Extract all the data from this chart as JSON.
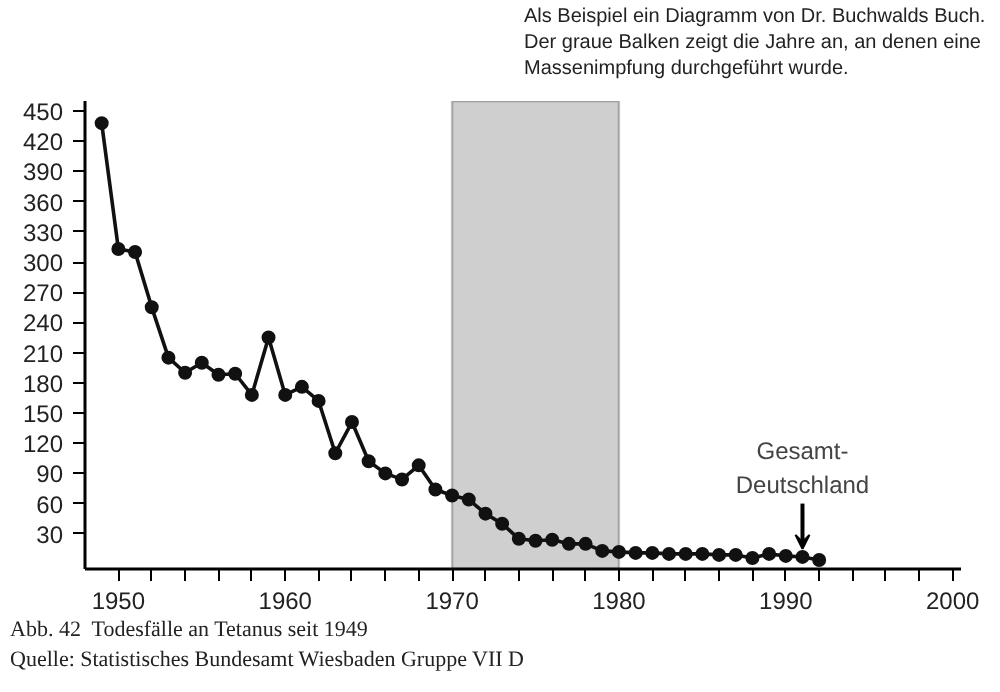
{
  "chart_data": {
    "type": "line",
    "x": [
      1949,
      1950,
      1951,
      1952,
      1953,
      1954,
      1955,
      1956,
      1957,
      1958,
      1959,
      1960,
      1961,
      1962,
      1963,
      1964,
      1965,
      1966,
      1967,
      1968,
      1969,
      1970,
      1971,
      1972,
      1973,
      1974,
      1975,
      1976,
      1977,
      1978,
      1979,
      1980,
      1981,
      1982,
      1983,
      1984,
      1985,
      1986,
      1987,
      1988,
      1989,
      1990,
      1991,
      1992
    ],
    "series": [
      {
        "color": "#111111",
        "values": [
          438,
          313,
          310,
          255,
          205,
          190,
          200,
          188,
          189,
          168,
          225,
          168,
          176,
          162,
          110,
          141,
          102,
          90,
          84,
          98,
          74,
          68,
          64,
          50,
          40,
          25,
          23,
          24,
          20,
          20,
          13,
          12,
          11,
          11,
          10,
          10,
          10,
          9,
          9,
          6,
          10,
          8,
          7,
          4
        ]
      }
    ],
    "xlim": [
      1948,
      2000.5
    ],
    "ylim": [
      -5,
      460
    ],
    "xticks": [
      1950,
      {
        "value": 1952,
        "label": null
      },
      {
        "value": 1954,
        "label": null
      },
      {
        "value": 1956,
        "label": null
      },
      {
        "value": 1958,
        "label": null
      },
      1960,
      {
        "value": 1962,
        "label": null
      },
      {
        "value": 1964,
        "label": null
      },
      {
        "value": 1966,
        "label": null
      },
      {
        "value": 1968,
        "label": null
      },
      1970,
      {
        "value": 1972,
        "label": null
      },
      {
        "value": 1974,
        "label": null
      },
      {
        "value": 1976,
        "label": null
      },
      {
        "value": 1978,
        "label": null
      },
      1980,
      {
        "value": 1982,
        "label": null
      },
      {
        "value": 1984,
        "label": null
      },
      {
        "value": 1986,
        "label": null
      },
      {
        "value": 1988,
        "label": null
      },
      1990,
      {
        "value": 1992,
        "label": null
      },
      {
        "value": 1994,
        "label": null
      },
      {
        "value": 1996,
        "label": null
      },
      {
        "value": 1998,
        "label": null
      },
      2000
    ],
    "yticks": [
      30,
      60,
      90,
      120,
      150,
      180,
      210,
      240,
      270,
      300,
      330,
      360,
      390,
      420,
      450
    ],
    "bands": [
      {
        "axis": "x",
        "from": 1970,
        "to": 1980,
        "color": "#cfcfcf"
      }
    ],
    "annotations": [
      "Als Beispiel ein Diagramm von Dr. Buchwalds Buch. Der graue Balken zeigt die Jahre an, an denen eine Massenimpfung durchgeführt wurde.",
      {
        "text": "Gesamt-\nDeutschland",
        "x": 1991,
        "y": 15
      },
      "Abb. 42   Todesfälle an Tetanus seit 1949",
      "Quelle: Statistisches Bundesamt Wiesbaden Gruppe VII D"
    ],
    "grid": false,
    "marker": "circle",
    "line_style": "solid"
  }
}
